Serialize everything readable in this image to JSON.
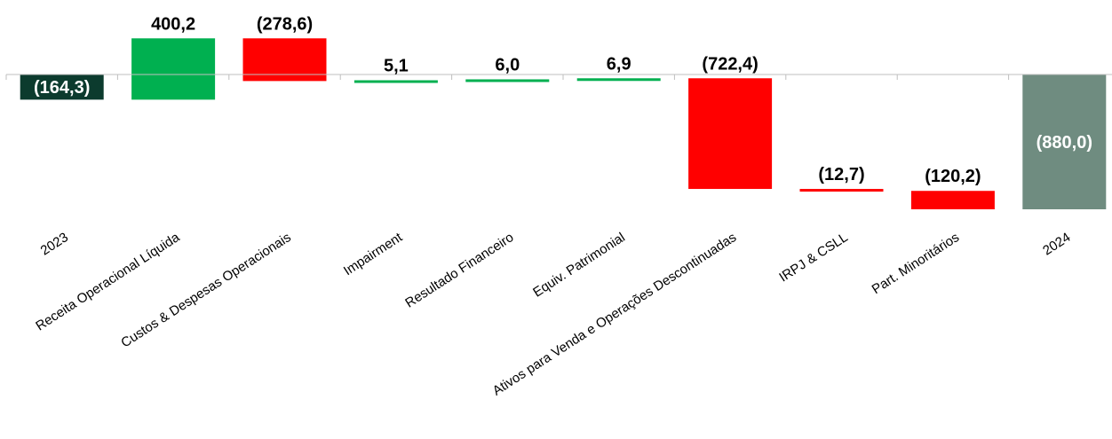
{
  "chart_data": {
    "type": "bar",
    "subtype": "waterfall",
    "title": "",
    "xlabel": "",
    "ylabel": "",
    "categories": [
      "2023",
      "Receita Operacional Líquida",
      "Custos & Despesas Operacionais",
      "Impairment",
      "Resultado Financeiro",
      "Equiv. Patrimonial",
      "Ativos para Venda e Operações Descontinuadas",
      "IRPJ & CSLL",
      "Part. Minoritários",
      "2024"
    ],
    "values": [
      -164.3,
      400.2,
      -278.6,
      5.1,
      6.0,
      6.9,
      -722.4,
      -12.7,
      -120.2,
      -880.0
    ],
    "value_labels": [
      "(164,3)",
      "400,2",
      "(278,6)",
      "5,1",
      "6,0",
      "6,9",
      "(722,4)",
      "(12,7)",
      "(120,2)",
      "(880,0)"
    ],
    "bar_kinds": [
      "total",
      "delta",
      "delta",
      "delta",
      "delta",
      "delta",
      "delta",
      "delta",
      "delta",
      "total"
    ],
    "ylim": [
      -880,
      240
    ],
    "grid": false,
    "legend": "none",
    "colors": {
      "increase": "#00b050",
      "decrease": "#ff0000",
      "start_total": "#0c3b2e",
      "end_total": "#6f8c80",
      "axis": "#bfbfbf",
      "label_text": "#000000",
      "label_text_inside": "#ffffff"
    }
  }
}
